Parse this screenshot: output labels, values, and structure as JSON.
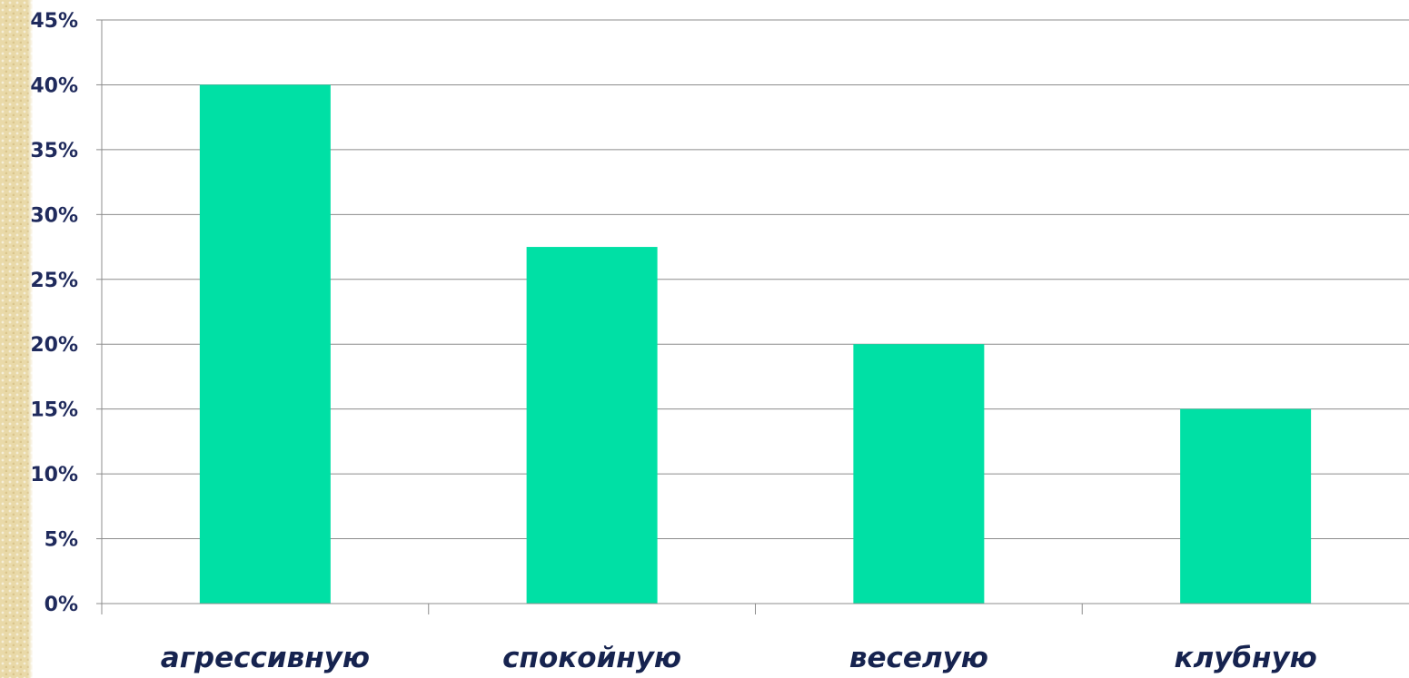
{
  "chart_data": {
    "type": "bar",
    "title": "",
    "xlabel": "",
    "ylabel": "",
    "categories": [
      "агрессивную",
      "спокойную",
      "веселую",
      "клубную"
    ],
    "values": [
      40,
      27.5,
      20,
      15
    ],
    "ylim": [
      0,
      45
    ],
    "y_ticks": [
      "0%",
      "5%",
      "10%",
      "15%",
      "20%",
      "25%",
      "30%",
      "35%",
      "40%",
      "45%"
    ],
    "y_unit": "%",
    "grid": true,
    "legend": "none",
    "bar_color": "#00e0a5",
    "grid_color": "#8c8c8c"
  }
}
